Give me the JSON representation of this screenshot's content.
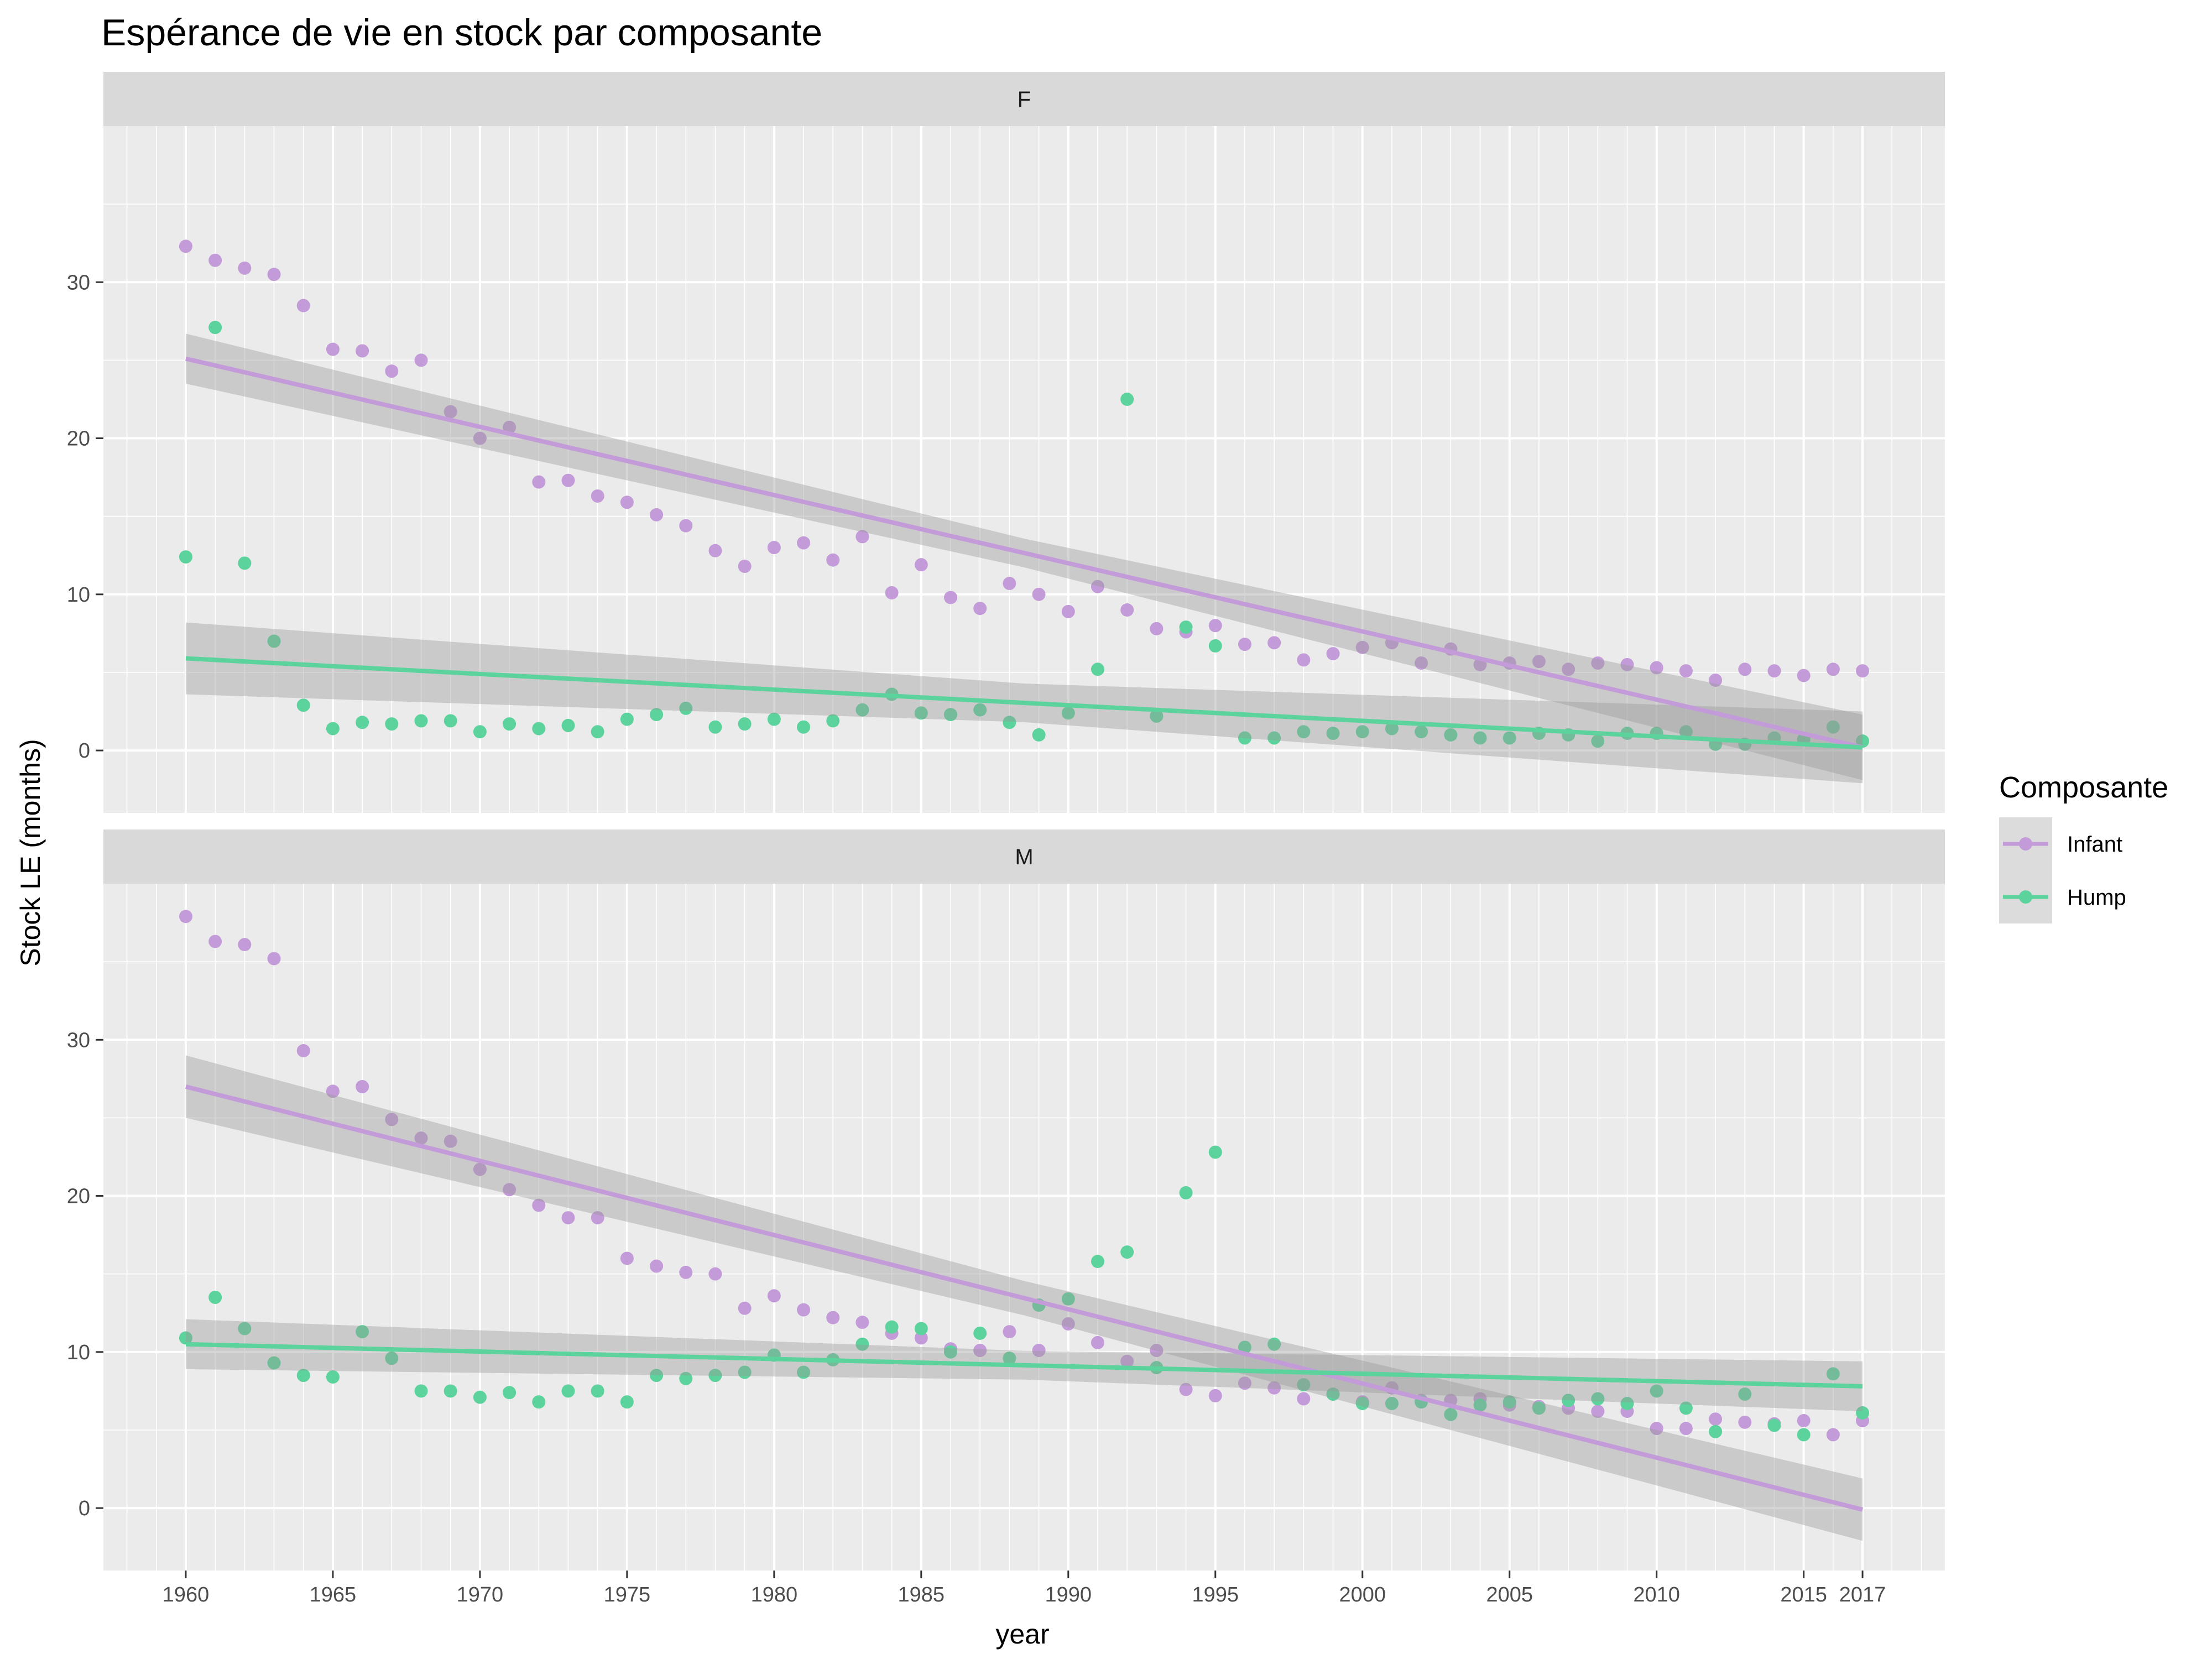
{
  "chart_data": {
    "type": "scatter",
    "title": "Espérance de vie en stock par composante",
    "xlabel": "year",
    "ylabel": "Stock LE (months)",
    "xlim": [
      1957.2,
      2019.8
    ],
    "x_ticks": [
      1960,
      1965,
      1970,
      1975,
      1980,
      1985,
      1990,
      1995,
      2000,
      2005,
      2010,
      2015,
      2017
    ],
    "y_ticks": [
      0,
      10,
      20,
      30
    ],
    "grid": true,
    "legend": {
      "title": "Composante",
      "placement": "right",
      "entries": [
        "Infant",
        "Hump"
      ]
    },
    "series_styles": [
      {
        "name": "Infant",
        "color": "#c39bd8"
      },
      {
        "name": "Hump",
        "color": "#5cd39c"
      }
    ],
    "band_color": "#999999",
    "panels": [
      {
        "label": "F",
        "ylim": [
          -4,
          40
        ],
        "series": [
          {
            "name": "Infant",
            "x": [
              1960,
              1961,
              1962,
              1963,
              1964,
              1965,
              1966,
              1967,
              1968,
              1969,
              1970,
              1971,
              1972,
              1973,
              1974,
              1975,
              1976,
              1977,
              1978,
              1979,
              1980,
              1981,
              1982,
              1983,
              1984,
              1985,
              1986,
              1987,
              1988,
              1989,
              1990,
              1991,
              1992,
              1993,
              1994,
              1995,
              1996,
              1997,
              1998,
              1999,
              2000,
              2001,
              2002,
              2003,
              2004,
              2005,
              2006,
              2007,
              2008,
              2009,
              2010,
              2011,
              2012,
              2013,
              2014,
              2015,
              2016,
              2017
            ],
            "y": [
              32.3,
              31.4,
              30.9,
              30.5,
              28.5,
              25.7,
              25.6,
              24.3,
              25.0,
              21.7,
              20.0,
              20.7,
              17.2,
              17.3,
              16.3,
              15.9,
              15.1,
              14.4,
              12.8,
              11.8,
              13.0,
              13.3,
              12.2,
              13.7,
              10.1,
              11.9,
              9.8,
              9.1,
              10.7,
              10.0,
              8.9,
              10.5,
              9.0,
              7.8,
              7.6,
              8.0,
              6.8,
              6.9,
              5.8,
              6.2,
              6.6,
              6.9,
              5.6,
              6.5,
              5.5,
              5.6,
              5.7,
              5.2,
              5.6,
              5.5,
              5.3,
              5.1,
              4.5,
              5.2,
              5.1,
              4.8,
              5.2,
              5.1
            ],
            "trend": {
              "start": [
                1960,
                25.1
              ],
              "end": [
                2017,
                0.2
              ],
              "band": [
                1.6,
                2.1
              ]
            }
          },
          {
            "name": "Hump",
            "x": [
              1960,
              1961,
              1962,
              1963,
              1964,
              1965,
              1966,
              1967,
              1968,
              1969,
              1970,
              1971,
              1972,
              1973,
              1974,
              1975,
              1976,
              1977,
              1978,
              1979,
              1980,
              1981,
              1982,
              1983,
              1984,
              1985,
              1986,
              1987,
              1988,
              1989,
              1990,
              1991,
              1992,
              1993,
              1994,
              1995,
              1996,
              1997,
              1998,
              1999,
              2000,
              2001,
              2002,
              2003,
              2004,
              2005,
              2006,
              2007,
              2008,
              2009,
              2010,
              2011,
              2012,
              2013,
              2014,
              2015,
              2016,
              2017
            ],
            "y": [
              12.4,
              27.1,
              12.0,
              7.0,
              2.9,
              1.4,
              1.8,
              1.7,
              1.9,
              1.9,
              1.2,
              1.7,
              1.4,
              1.6,
              1.2,
              2.0,
              2.3,
              2.7,
              1.5,
              1.7,
              2.0,
              1.5,
              1.9,
              2.6,
              3.6,
              2.4,
              2.3,
              2.6,
              1.8,
              1.0,
              2.4,
              5.2,
              22.5,
              2.2,
              7.9,
              6.7,
              0.8,
              0.8,
              1.2,
              1.1,
              1.2,
              1.4,
              1.2,
              1.0,
              0.8,
              0.8,
              1.1,
              1.0,
              0.6,
              1.1,
              1.1,
              1.2,
              0.4,
              0.4,
              0.8,
              0.7,
              1.5,
              0.6
            ],
            "trend": {
              "start": [
                1960,
                5.9
              ],
              "end": [
                2017,
                0.2
              ],
              "band": [
                2.3,
                2.3
              ]
            }
          }
        ]
      },
      {
        "label": "M",
        "ylim": [
          -4,
          40
        ],
        "series": [
          {
            "name": "Infant",
            "x": [
              1960,
              1961,
              1962,
              1963,
              1964,
              1965,
              1966,
              1967,
              1968,
              1969,
              1970,
              1971,
              1972,
              1973,
              1974,
              1975,
              1976,
              1977,
              1978,
              1979,
              1980,
              1981,
              1982,
              1983,
              1984,
              1985,
              1986,
              1987,
              1988,
              1989,
              1990,
              1991,
              1992,
              1993,
              1994,
              1995,
              1996,
              1997,
              1998,
              1999,
              2000,
              2001,
              2002,
              2003,
              2004,
              2005,
              2006,
              2007,
              2008,
              2009,
              2010,
              2011,
              2012,
              2013,
              2014,
              2015,
              2016,
              2017
            ],
            "y": [
              37.9,
              36.3,
              36.1,
              35.2,
              29.3,
              26.7,
              27.0,
              24.9,
              23.7,
              23.5,
              21.7,
              20.4,
              19.4,
              18.6,
              18.6,
              16.0,
              15.5,
              15.1,
              15.0,
              12.8,
              13.6,
              12.7,
              12.2,
              11.9,
              11.2,
              10.9,
              10.2,
              10.1,
              11.3,
              10.1,
              11.8,
              10.6,
              9.4,
              10.1,
              7.6,
              7.2,
              8.0,
              7.7,
              7.0,
              7.3,
              6.8,
              7.7,
              6.9,
              6.9,
              7.0,
              6.6,
              6.5,
              6.4,
              6.2,
              6.2,
              5.1,
              5.1,
              5.7,
              5.5,
              5.4,
              5.6,
              4.7,
              5.6
            ],
            "trend": {
              "start": [
                1960,
                27.0
              ],
              "end": [
                2017,
                -0.1
              ],
              "band": [
                2.0,
                2.0
              ]
            }
          },
          {
            "name": "Hump",
            "x": [
              1960,
              1961,
              1962,
              1963,
              1964,
              1965,
              1966,
              1967,
              1968,
              1969,
              1970,
              1971,
              1972,
              1973,
              1974,
              1975,
              1976,
              1977,
              1978,
              1979,
              1980,
              1981,
              1982,
              1983,
              1984,
              1985,
              1986,
              1987,
              1988,
              1989,
              1990,
              1991,
              1992,
              1993,
              1994,
              1995,
              1996,
              1997,
              1998,
              1999,
              2000,
              2001,
              2002,
              2003,
              2004,
              2005,
              2006,
              2007,
              2008,
              2009,
              2010,
              2011,
              2012,
              2013,
              2014,
              2015,
              2016,
              2017
            ],
            "y": [
              10.9,
              13.5,
              11.5,
              9.3,
              8.5,
              8.4,
              11.3,
              9.6,
              7.5,
              7.5,
              7.1,
              7.4,
              6.8,
              7.5,
              7.5,
              6.8,
              8.5,
              8.3,
              8.5,
              8.7,
              9.8,
              8.7,
              9.5,
              10.5,
              11.6,
              11.5,
              10.0,
              11.2,
              9.6,
              13.0,
              13.4,
              15.8,
              16.4,
              9.0,
              20.2,
              22.8,
              10.3,
              10.5,
              7.9,
              7.3,
              6.7,
              6.7,
              6.8,
              6.0,
              6.6,
              6.8,
              6.4,
              6.9,
              7.0,
              6.7,
              7.5,
              6.4,
              4.9,
              7.3,
              5.3,
              4.7,
              8.6,
              6.1
            ],
            "trend": {
              "start": [
                1960,
                10.5
              ],
              "end": [
                2017,
                7.8
              ],
              "band": [
                1.6,
                1.6
              ]
            }
          }
        ]
      }
    ]
  }
}
